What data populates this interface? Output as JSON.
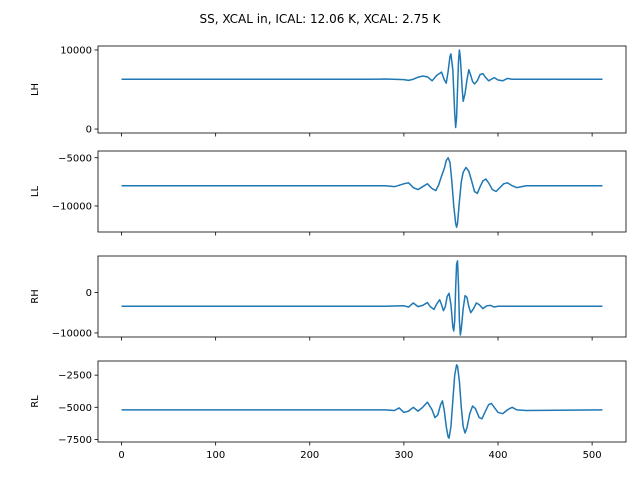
{
  "chart_data": {
    "type": "line",
    "title": "SS, XCAL in, ICAL: 12.06 K, XCAL: 2.75 K",
    "xlim": [
      -25,
      536
    ],
    "x_ticks": [
      0,
      100,
      200,
      300,
      400,
      500
    ],
    "x_tick_labels": [
      "0",
      "100",
      "200",
      "300",
      "400",
      "500"
    ],
    "color": "#1f77b4",
    "subplots": [
      {
        "id": "lh",
        "ylabel": "LH",
        "ylim": [
          -500,
          10500
        ],
        "y_ticks": [
          0,
          10000
        ],
        "y_tick_labels": [
          "0",
          "10000"
        ],
        "baseline": 6300,
        "points": [
          [
            0,
            6300
          ],
          [
            100,
            6300
          ],
          [
            200,
            6300
          ],
          [
            260,
            6300
          ],
          [
            280,
            6320
          ],
          [
            300,
            6250
          ],
          [
            305,
            6150
          ],
          [
            310,
            6300
          ],
          [
            315,
            6550
          ],
          [
            320,
            6700
          ],
          [
            325,
            6600
          ],
          [
            330,
            6100
          ],
          [
            335,
            6800
          ],
          [
            340,
            7200
          ],
          [
            343,
            6200
          ],
          [
            345,
            5800
          ],
          [
            347,
            7300
          ],
          [
            349,
            9200
          ],
          [
            350,
            9500
          ],
          [
            352,
            7500
          ],
          [
            354,
            2000
          ],
          [
            355,
            200
          ],
          [
            356,
            1500
          ],
          [
            357,
            5000
          ],
          [
            358,
            8500
          ],
          [
            359,
            10000
          ],
          [
            360,
            9000
          ],
          [
            362,
            5000
          ],
          [
            363,
            3500
          ],
          [
            365,
            4500
          ],
          [
            367,
            6200
          ],
          [
            369,
            7500
          ],
          [
            371,
            6800
          ],
          [
            373,
            6000
          ],
          [
            375,
            5700
          ],
          [
            378,
            6100
          ],
          [
            381,
            6900
          ],
          [
            384,
            7000
          ],
          [
            387,
            6500
          ],
          [
            390,
            6100
          ],
          [
            393,
            6300
          ],
          [
            396,
            6500
          ],
          [
            400,
            6200
          ],
          [
            405,
            6100
          ],
          [
            410,
            6400
          ],
          [
            415,
            6300
          ],
          [
            430,
            6300
          ],
          [
            511,
            6300
          ]
        ]
      },
      {
        "id": "ll",
        "ylabel": "LL",
        "ylim": [
          -12700,
          -4300
        ],
        "y_ticks": [
          -5000,
          -10000
        ],
        "y_tick_labels": [
          "−5000",
          "−10000"
        ],
        "baseline": -7900,
        "points": [
          [
            0,
            -7900
          ],
          [
            100,
            -7900
          ],
          [
            200,
            -7900
          ],
          [
            280,
            -7900
          ],
          [
            290,
            -8000
          ],
          [
            300,
            -7700
          ],
          [
            305,
            -7600
          ],
          [
            310,
            -8100
          ],
          [
            315,
            -8300
          ],
          [
            320,
            -8000
          ],
          [
            325,
            -7700
          ],
          [
            330,
            -8200
          ],
          [
            334,
            -8400
          ],
          [
            337,
            -7800
          ],
          [
            340,
            -6900
          ],
          [
            343,
            -6100
          ],
          [
            345,
            -5300
          ],
          [
            347,
            -5000
          ],
          [
            349,
            -5500
          ],
          [
            351,
            -7500
          ],
          [
            353,
            -10000
          ],
          [
            355,
            -11800
          ],
          [
            356,
            -12200
          ],
          [
            357,
            -11800
          ],
          [
            359,
            -9500
          ],
          [
            361,
            -7500
          ],
          [
            363,
            -6500
          ],
          [
            366,
            -6000
          ],
          [
            369,
            -6400
          ],
          [
            372,
            -7400
          ],
          [
            375,
            -8500
          ],
          [
            378,
            -8700
          ],
          [
            381,
            -8000
          ],
          [
            384,
            -7400
          ],
          [
            387,
            -7200
          ],
          [
            390,
            -7600
          ],
          [
            394,
            -8300
          ],
          [
            398,
            -8500
          ],
          [
            402,
            -8100
          ],
          [
            406,
            -7700
          ],
          [
            410,
            -7600
          ],
          [
            415,
            -7900
          ],
          [
            420,
            -8100
          ],
          [
            430,
            -7900
          ],
          [
            511,
            -7900
          ]
        ]
      },
      {
        "id": "rh",
        "ylabel": "RH",
        "ylim": [
          -11000,
          9000
        ],
        "y_ticks": [
          0,
          -10000
        ],
        "y_tick_labels": [
          "0",
          "−10000"
        ],
        "baseline": -3400,
        "points": [
          [
            0,
            -3400
          ],
          [
            100,
            -3400
          ],
          [
            200,
            -3400
          ],
          [
            280,
            -3400
          ],
          [
            300,
            -3300
          ],
          [
            305,
            -3600
          ],
          [
            310,
            -2600
          ],
          [
            315,
            -3500
          ],
          [
            320,
            -3200
          ],
          [
            325,
            -2500
          ],
          [
            328,
            -3500
          ],
          [
            332,
            -4200
          ],
          [
            335,
            -2800
          ],
          [
            338,
            -1800
          ],
          [
            340,
            -3000
          ],
          [
            342,
            -4500
          ],
          [
            344,
            -3500
          ],
          [
            346,
            -1000
          ],
          [
            348,
            -200
          ],
          [
            350,
            -3000
          ],
          [
            352,
            -8500
          ],
          [
            353,
            -9500
          ],
          [
            354,
            -7000
          ],
          [
            355,
            1000
          ],
          [
            356,
            7000
          ],
          [
            357,
            7800
          ],
          [
            358,
            2000
          ],
          [
            359,
            -7000
          ],
          [
            360,
            -10500
          ],
          [
            361,
            -9000
          ],
          [
            363,
            -4000
          ],
          [
            365,
            -800
          ],
          [
            367,
            -1200
          ],
          [
            369,
            -3500
          ],
          [
            371,
            -5000
          ],
          [
            374,
            -4000
          ],
          [
            377,
            -2600
          ],
          [
            380,
            -3000
          ],
          [
            384,
            -4000
          ],
          [
            388,
            -3300
          ],
          [
            392,
            -3200
          ],
          [
            396,
            -3600
          ],
          [
            400,
            -3400
          ],
          [
            511,
            -3400
          ]
        ]
      },
      {
        "id": "rl",
        "ylabel": "RL",
        "ylim": [
          -7700,
          -1400
        ],
        "y_ticks": [
          -2500,
          -5000,
          -7500
        ],
        "y_tick_labels": [
          "−2500",
          "−5000",
          "−7500"
        ],
        "baseline": -5200,
        "points": [
          [
            0,
            -5200
          ],
          [
            100,
            -5200
          ],
          [
            200,
            -5200
          ],
          [
            280,
            -5200
          ],
          [
            290,
            -5250
          ],
          [
            295,
            -5050
          ],
          [
            300,
            -5400
          ],
          [
            305,
            -5300
          ],
          [
            310,
            -5000
          ],
          [
            315,
            -5300
          ],
          [
            320,
            -5000
          ],
          [
            325,
            -4600
          ],
          [
            330,
            -5200
          ],
          [
            333,
            -5800
          ],
          [
            336,
            -5600
          ],
          [
            339,
            -4800
          ],
          [
            341,
            -4500
          ],
          [
            343,
            -5300
          ],
          [
            345,
            -6500
          ],
          [
            347,
            -7300
          ],
          [
            348,
            -7400
          ],
          [
            350,
            -6500
          ],
          [
            352,
            -4500
          ],
          [
            354,
            -2500
          ],
          [
            356,
            -1700
          ],
          [
            357,
            -1800
          ],
          [
            359,
            -3000
          ],
          [
            361,
            -5000
          ],
          [
            363,
            -6500
          ],
          [
            365,
            -7000
          ],
          [
            367,
            -6600
          ],
          [
            370,
            -5500
          ],
          [
            373,
            -4900
          ],
          [
            376,
            -5100
          ],
          [
            380,
            -5800
          ],
          [
            383,
            -5900
          ],
          [
            386,
            -5400
          ],
          [
            390,
            -4800
          ],
          [
            393,
            -4700
          ],
          [
            396,
            -5000
          ],
          [
            400,
            -5400
          ],
          [
            405,
            -5500
          ],
          [
            410,
            -5200
          ],
          [
            415,
            -5000
          ],
          [
            420,
            -5200
          ],
          [
            430,
            -5250
          ],
          [
            511,
            -5200
          ]
        ]
      }
    ]
  }
}
